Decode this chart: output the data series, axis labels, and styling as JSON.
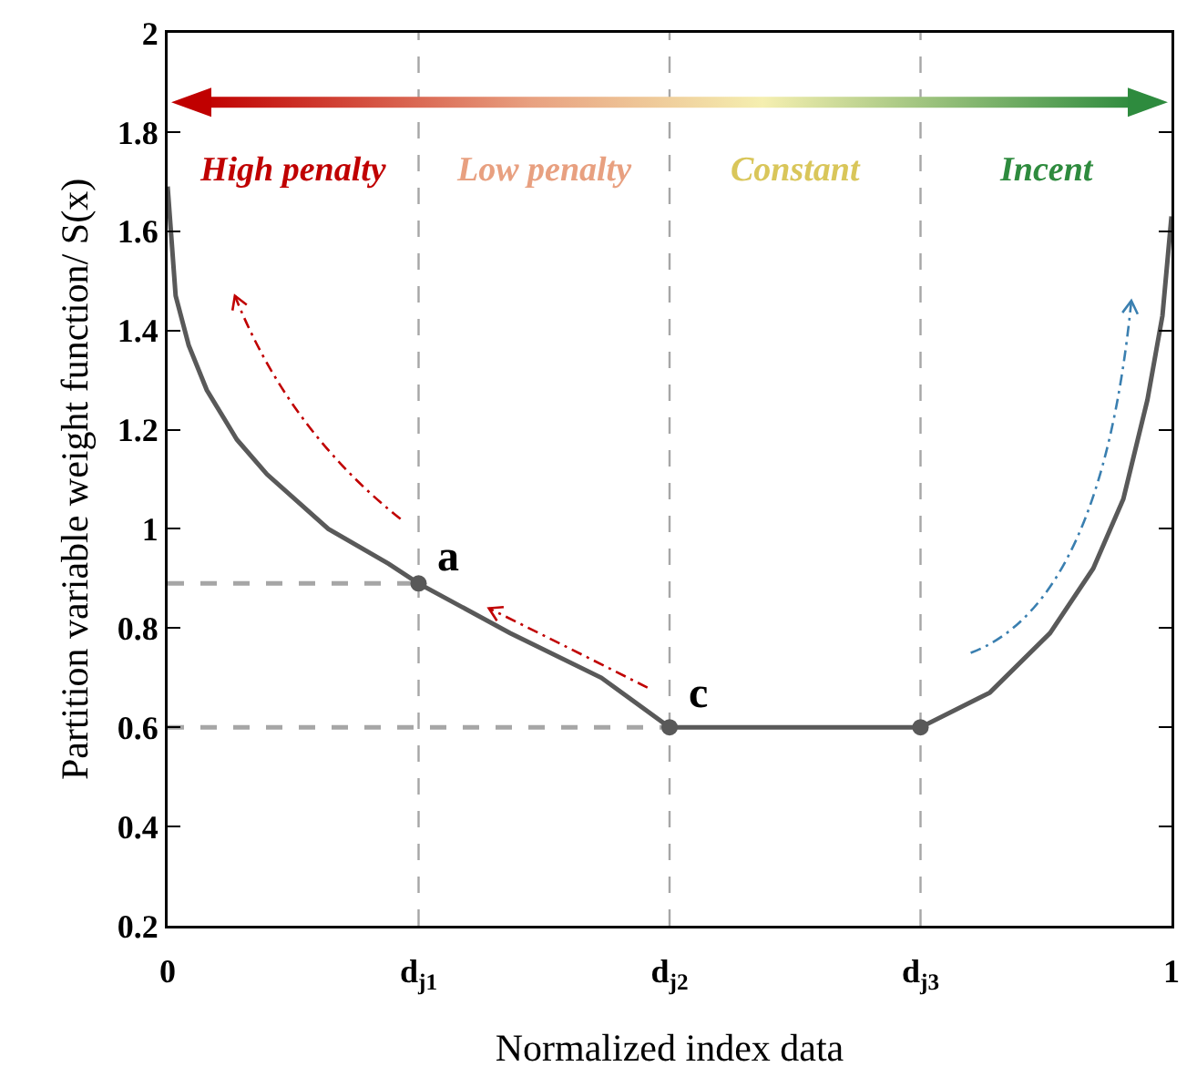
{
  "chart_data": {
    "type": "line",
    "xlabel": "Normalized index data",
    "ylabel": "Partition variable weight function/ S(x)",
    "xlim": [
      0,
      1
    ],
    "ylim": [
      0.2,
      2
    ],
    "xticks": [
      0,
      {
        "value": 0.25,
        "label": "d$_{j1}$"
      },
      {
        "value": 0.5,
        "label": "d$_{j2}$"
      },
      {
        "value": 0.75,
        "label": "d$_{j3}$"
      },
      1
    ],
    "yticks": [
      0.2,
      0.4,
      0.6,
      0.8,
      1,
      1.2,
      1.4,
      1.6,
      1.8,
      2
    ],
    "grid": false,
    "marker": "none",
    "line_style": "solid",
    "series": [
      {
        "type": "line",
        "color": "#595959",
        "x": [
          0,
          0.008,
          0.021,
          0.039,
          0.069,
          0.099,
          0.16,
          0.22,
          0.25,
          0.341,
          0.432,
          0.5,
          0.75,
          0.819,
          0.879,
          0.922,
          0.952,
          0.976,
          0.991,
          1
        ],
        "values": [
          1.69,
          1.47,
          1.37,
          1.28,
          1.18,
          1.11,
          1.0,
          0.93,
          0.89,
          0.79,
          0.7,
          0.6,
          0.6,
          0.67,
          0.79,
          0.92,
          1.06,
          1.26,
          1.43,
          1.63
        ]
      },
      {
        "type": "line",
        "line_style": "dashed",
        "color": "#a6a6a6",
        "x": [
          0,
          0.25
        ],
        "values": [
          0.89,
          0.89
        ]
      },
      {
        "type": "line",
        "line_style": "dashed",
        "color": "#a6a6a6",
        "x": [
          0,
          0.5
        ],
        "values": [
          0.6,
          0.6
        ]
      },
      {
        "type": "scatter",
        "marker": "circle",
        "color": "#595959",
        "x": [
          0.25,
          0.5,
          0.75
        ],
        "values": [
          0.89,
          0.6,
          0.6
        ]
      }
    ],
    "ref_lines": [
      {
        "axis": "x",
        "value": 0.25,
        "label": null,
        "color": "#a6a6a6",
        "line_style": "dashed"
      },
      {
        "axis": "x",
        "value": 0.5,
        "label": null,
        "color": "#a6a6a6",
        "line_style": "dashed"
      },
      {
        "axis": "x",
        "value": 0.75,
        "label": null,
        "color": "#a6a6a6",
        "line_style": "dashed"
      }
    ],
    "annotations": [
      "High penalty",
      "Low penalty",
      "Constant",
      "Incent",
      {
        "text": "a",
        "x": 0.25,
        "y": 0.89
      },
      {
        "text": "c",
        "x": 0.5,
        "y": 0.6
      }
    ]
  }
}
